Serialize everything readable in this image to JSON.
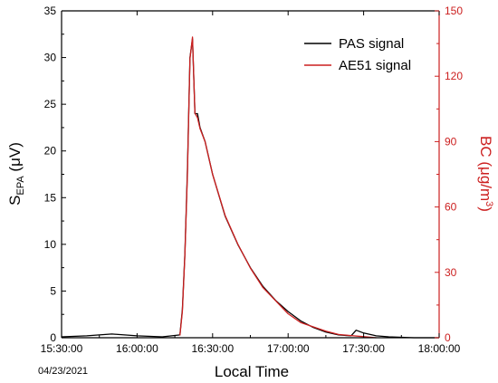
{
  "chart_data": {
    "type": "line",
    "date_label": "04/23/2021",
    "xlabel": "Local Time",
    "ylabel_left": {
      "base": "S",
      "sub": "EPA",
      "unit": " (μV)"
    },
    "ylabel_right": {
      "base": "BC (μg/m",
      "sup": "3",
      "end": ")"
    },
    "x_ticks": [
      "15:30:00",
      "16:00:00",
      "16:30:00",
      "17:00:00",
      "17:30:00",
      "18:00:00"
    ],
    "x_range_minutes": [
      0,
      150
    ],
    "y_left": {
      "range": [
        0,
        35
      ],
      "ticks": [
        0,
        5,
        10,
        15,
        20,
        25,
        30,
        35
      ]
    },
    "y_right": {
      "range": [
        0,
        150
      ],
      "ticks": [
        0,
        30,
        60,
        90,
        120,
        150
      ]
    },
    "legend_position": "top-right",
    "colors": {
      "pas": "#000000",
      "ae51": "#cc1f1f",
      "right_axis": "#cc1f1f"
    },
    "series": [
      {
        "name": "PAS signal",
        "axis": "left",
        "x_time": [
          "15:30:00",
          "15:40:00",
          "15:50:00",
          "16:00:00",
          "16:10:00",
          "16:17:00",
          "16:18:00",
          "16:19:00",
          "16:20:00",
          "16:21:00",
          "16:22:00",
          "16:23:00",
          "16:24:00",
          "16:25:00",
          "16:27:00",
          "16:30:00",
          "16:35:00",
          "16:40:00",
          "16:45:00",
          "16:50:00",
          "16:55:00",
          "17:00:00",
          "17:05:00",
          "17:10:00",
          "17:15:00",
          "17:20:00",
          "17:25:00",
          "17:27:00",
          "17:30:00",
          "17:35:00",
          "17:40:00",
          "17:50:00",
          "18:00:00"
        ],
        "y": [
          0.1,
          0.2,
          0.4,
          0.2,
          0.1,
          0.3,
          3,
          9,
          18,
          30,
          32,
          24,
          24,
          22.5,
          21,
          17.5,
          13,
          10,
          7.5,
          5.5,
          4,
          2.8,
          1.8,
          1.1,
          0.6,
          0.3,
          0.2,
          0.8,
          0.5,
          0.2,
          0.1,
          0.0,
          0.0
        ]
      },
      {
        "name": "AE51 signal",
        "axis": "right",
        "x_time": [
          "16:17:00",
          "16:18:00",
          "16:19:00",
          "16:20:00",
          "16:21:00",
          "16:22:00",
          "16:23:00",
          "16:24:00",
          "16:25:00",
          "16:27:00",
          "16:30:00",
          "16:35:00",
          "16:40:00",
          "16:45:00",
          "16:50:00",
          "16:55:00",
          "17:00:00",
          "17:05:00",
          "17:10:00",
          "17:15:00",
          "17:20:00",
          "17:25:00",
          "17:30:00",
          "17:35:00"
        ],
        "y": [
          1,
          12,
          38,
          75,
          128,
          138,
          103,
          101,
          96,
          90,
          75,
          56,
          43,
          32,
          23,
          17,
          11,
          7,
          5,
          3,
          1.5,
          1,
          0.5,
          0
        ]
      }
    ]
  }
}
